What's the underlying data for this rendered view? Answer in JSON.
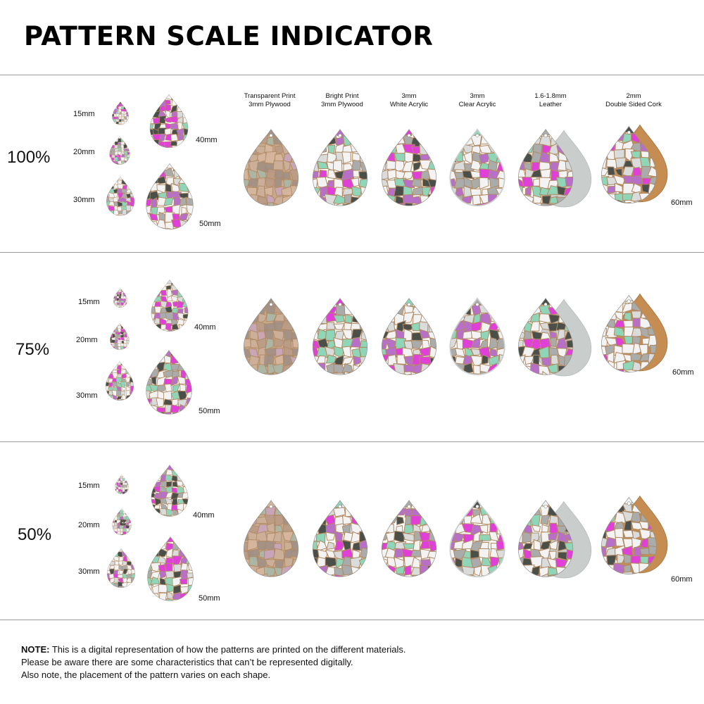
{
  "header": {
    "title": "PATTERN SCALE INDICATOR"
  },
  "columns": [
    {
      "line1": "Transparent Print",
      "line2": "3mm Plywood"
    },
    {
      "line1": "Bright Print",
      "line2": "3mm Plywood"
    },
    {
      "line1": "3mm",
      "line2": "White Acrylic"
    },
    {
      "line1": "3mm",
      "line2": "Clear Acrylic"
    },
    {
      "line1": "1.6-1.8mm",
      "line2": "Leather"
    },
    {
      "line1": "2mm",
      "line2": "Double Sided Cork"
    }
  ],
  "sections": [
    {
      "scale": "100%",
      "size_15": "15mm",
      "size_20": "20mm",
      "size_30": "30mm",
      "size_40": "40mm",
      "size_50": "50mm",
      "size_60": "60mm"
    },
    {
      "scale": "75%",
      "size_15": "15mm",
      "size_20": "20mm",
      "size_30": "30mm",
      "size_40": "40mm",
      "size_50": "50mm",
      "size_60": "60mm"
    },
    {
      "scale": "50%",
      "size_15": "15mm",
      "size_20": "20mm",
      "size_30": "30mm",
      "size_40": "40mm",
      "size_50": "50mm",
      "size_60": "60mm"
    }
  ],
  "note": {
    "label": "NOTE:",
    "line1": " This is a digital representation of how the patterns are printed on the different materials.",
    "line2": "Please be aware there are some characteristics that can’t be represented digitally.",
    "line3": "Also note, the placement of the pattern varies on each shape."
  },
  "colors": {
    "pink": "#e040d8",
    "mint": "#8fd6b8",
    "grey": "#a9acab",
    "dark": "#4b4f4a",
    "white_tile": "#f3f3f3",
    "grout": "#b08a64",
    "plywood": "#c9a98b",
    "cork": "#c58d52",
    "leather_back": "#c9cdcb"
  }
}
